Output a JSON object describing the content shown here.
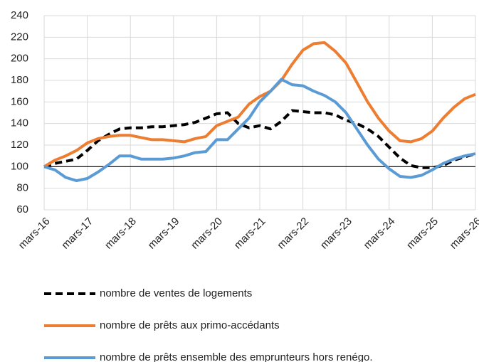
{
  "chart_data": {
    "type": "line",
    "categories": [
      "mars-16",
      null,
      null,
      null,
      "mars-17",
      null,
      null,
      null,
      "mars-18",
      null,
      null,
      null,
      "mars-19",
      null,
      null,
      null,
      "mars-20",
      null,
      null,
      null,
      "mars-21",
      null,
      null,
      null,
      "mars-22",
      null,
      null,
      null,
      "mars-23",
      null,
      null,
      null,
      "mars-24",
      null,
      null,
      null,
      "mars-25",
      null,
      null,
      null,
      "mars-26"
    ],
    "series": [
      {
        "name": "nombre de ventes de logements",
        "color": "#000000",
        "dashed": true,
        "values": [
          100,
          103,
          105,
          107,
          115,
          124,
          130,
          135,
          136,
          136,
          137,
          137,
          138,
          139,
          141,
          145,
          149,
          150,
          140,
          136,
          138,
          135,
          142,
          152,
          151,
          150,
          150,
          148,
          143,
          140,
          135,
          128,
          118,
          108,
          101,
          99,
          99,
          101,
          106,
          109,
          112
        ]
      },
      {
        "name": "nombre de prêts aux primo-accédants",
        "color": "#ed7d31",
        "dashed": false,
        "values": [
          100,
          106,
          110,
          115,
          122,
          126,
          128,
          129,
          129,
          127,
          125,
          125,
          124,
          123,
          126,
          128,
          138,
          142,
          146,
          158,
          165,
          170,
          180,
          195,
          208,
          214,
          215,
          207,
          196,
          178,
          160,
          145,
          133,
          124,
          123,
          126,
          133,
          145,
          155,
          163,
          167
        ]
      },
      {
        "name": "nombre de prêts ensemble des emprunteurs hors renégo.",
        "color": "#5b9bd5",
        "dashed": false,
        "values": [
          100,
          97,
          90,
          87,
          89,
          95,
          102,
          110,
          110,
          107,
          107,
          107,
          108,
          110,
          113,
          114,
          125,
          125,
          135,
          145,
          160,
          170,
          181,
          176,
          175,
          170,
          166,
          160,
          150,
          135,
          120,
          107,
          98,
          91,
          90,
          92,
          97,
          103,
          107,
          110,
          112
        ]
      }
    ],
    "ylim": [
      60,
      240
    ],
    "yticks": [
      60,
      80,
      100,
      120,
      140,
      160,
      180,
      200,
      220,
      240
    ],
    "xaxis_crosses": 100,
    "grid": true,
    "legend": "bottom"
  }
}
